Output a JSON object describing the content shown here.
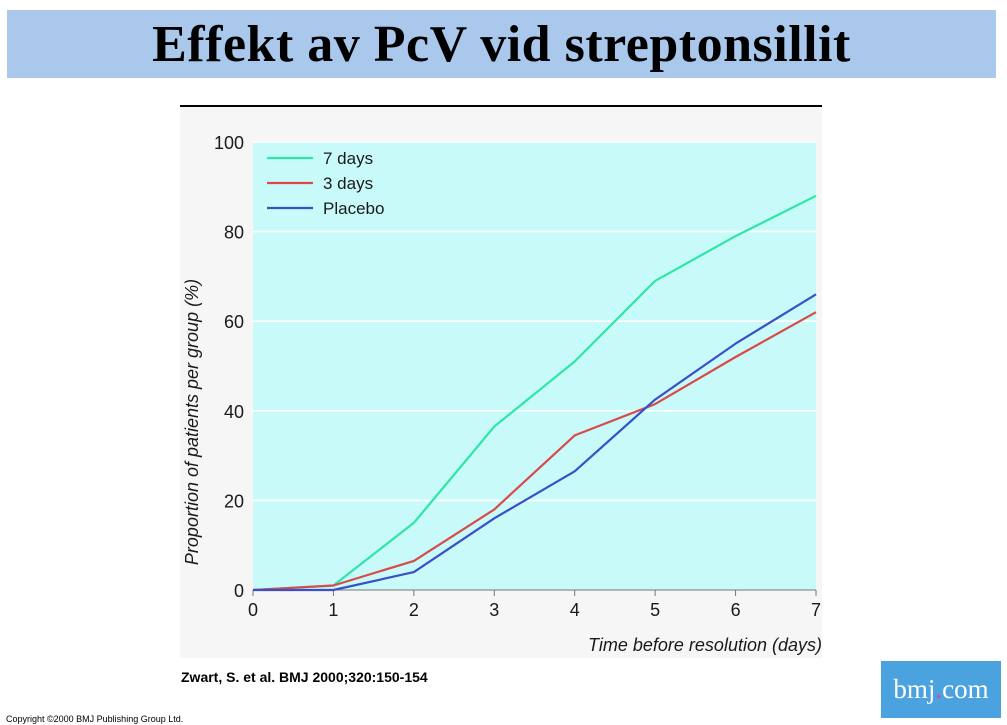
{
  "slide": {
    "title": "Effekt av PcV vid streptonsillit",
    "citation": "Zwart, S. et al. BMJ 2000;320:150-154",
    "copyright": "Copyright ©2000 BMJ Publishing Group Ltd.",
    "logo": {
      "left": "bmj",
      "dot": ".",
      "right": "com"
    }
  },
  "colors": {
    "title_bg": "#aac8ec",
    "plot_bg": "#c8fafa",
    "logo_bg": "#4aa3df"
  },
  "chart_data": {
    "type": "line",
    "title": "",
    "xlabel": "Time before resolution (days)",
    "ylabel": "Proportion of patients per group (%)",
    "x": [
      0,
      1,
      2,
      3,
      4,
      5,
      6,
      7
    ],
    "xlim": [
      0,
      7
    ],
    "ylim": [
      0,
      100
    ],
    "xticks": [
      0,
      1,
      2,
      3,
      4,
      5,
      6,
      7
    ],
    "yticks": [
      0,
      20,
      40,
      60,
      80,
      100
    ],
    "grid": true,
    "legend_position": "top-left",
    "series": [
      {
        "name": "7 days",
        "color": "#2ee6a6",
        "values": [
          0,
          1,
          15,
          36.5,
          51,
          69,
          79,
          88
        ]
      },
      {
        "name": "3 days",
        "color": "#d94b4b",
        "values": [
          0,
          1,
          6.5,
          18,
          34.5,
          41.5,
          52,
          62
        ]
      },
      {
        "name": "Placebo",
        "color": "#3b4fc8",
        "values": [
          0,
          0,
          4,
          16,
          26.5,
          42.5,
          55,
          66
        ]
      }
    ]
  }
}
